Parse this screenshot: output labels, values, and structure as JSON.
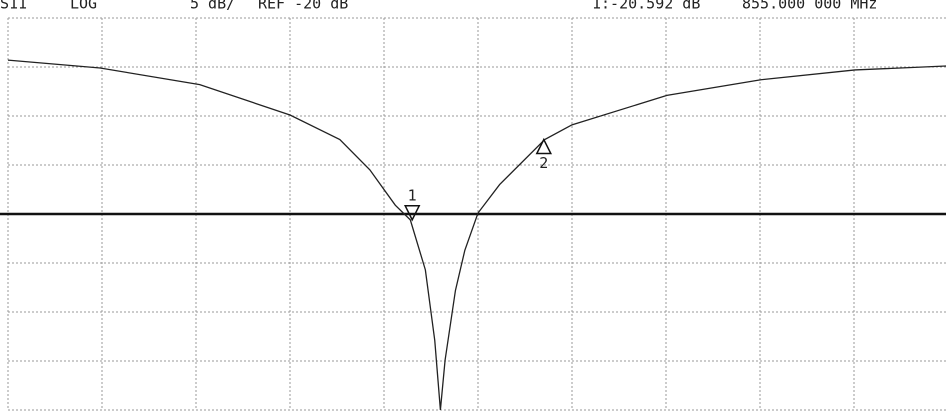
{
  "header": {
    "param": "S11",
    "format": "LOG",
    "scale": "5 dB/",
    "ref": "REF -20 dB",
    "marker": "1:-20.592 dB",
    "freq": "855.000 000 MHz"
  },
  "chart_data": {
    "type": "line",
    "x": [
      0,
      0.98,
      2.04,
      3.0,
      3.53,
      3.85,
      4.12,
      4.28,
      4.44,
      4.54,
      4.6,
      4.65,
      4.76,
      4.86,
      5.0,
      5.23,
      5.71,
      6.0,
      7.01,
      8.01,
      9.01,
      9.98
    ],
    "series": [
      {
        "color": "#222222",
        "values": [
          -4.3,
          -5.1,
          -6.8,
          -9.9,
          -12.4,
          -15.5,
          -19.1,
          -20.6,
          -25.7,
          -32.9,
          -40,
          -34.9,
          -27.8,
          -23.7,
          -19.9,
          -17.0,
          -12.4,
          -10.9,
          -7.9,
          -6.3,
          -5.3,
          -4.9
        ]
      }
    ],
    "xlim": [
      0,
      10
    ],
    "ylim": [
      -40,
      0
    ],
    "xticks": [
      0,
      1,
      2,
      3,
      4,
      5,
      6,
      7,
      8,
      9,
      10
    ],
    "yticks": [
      -40,
      -35,
      -30,
      -25,
      -20,
      -15,
      -10,
      -5,
      0
    ],
    "reference": -20,
    "markers": [
      {
        "label": "1",
        "x": 4.3,
        "value": -20.592,
        "direction": "down"
      },
      {
        "label": "2",
        "x": 5.7,
        "value": -12.4,
        "direction": "up"
      }
    ],
    "grid": true
  }
}
